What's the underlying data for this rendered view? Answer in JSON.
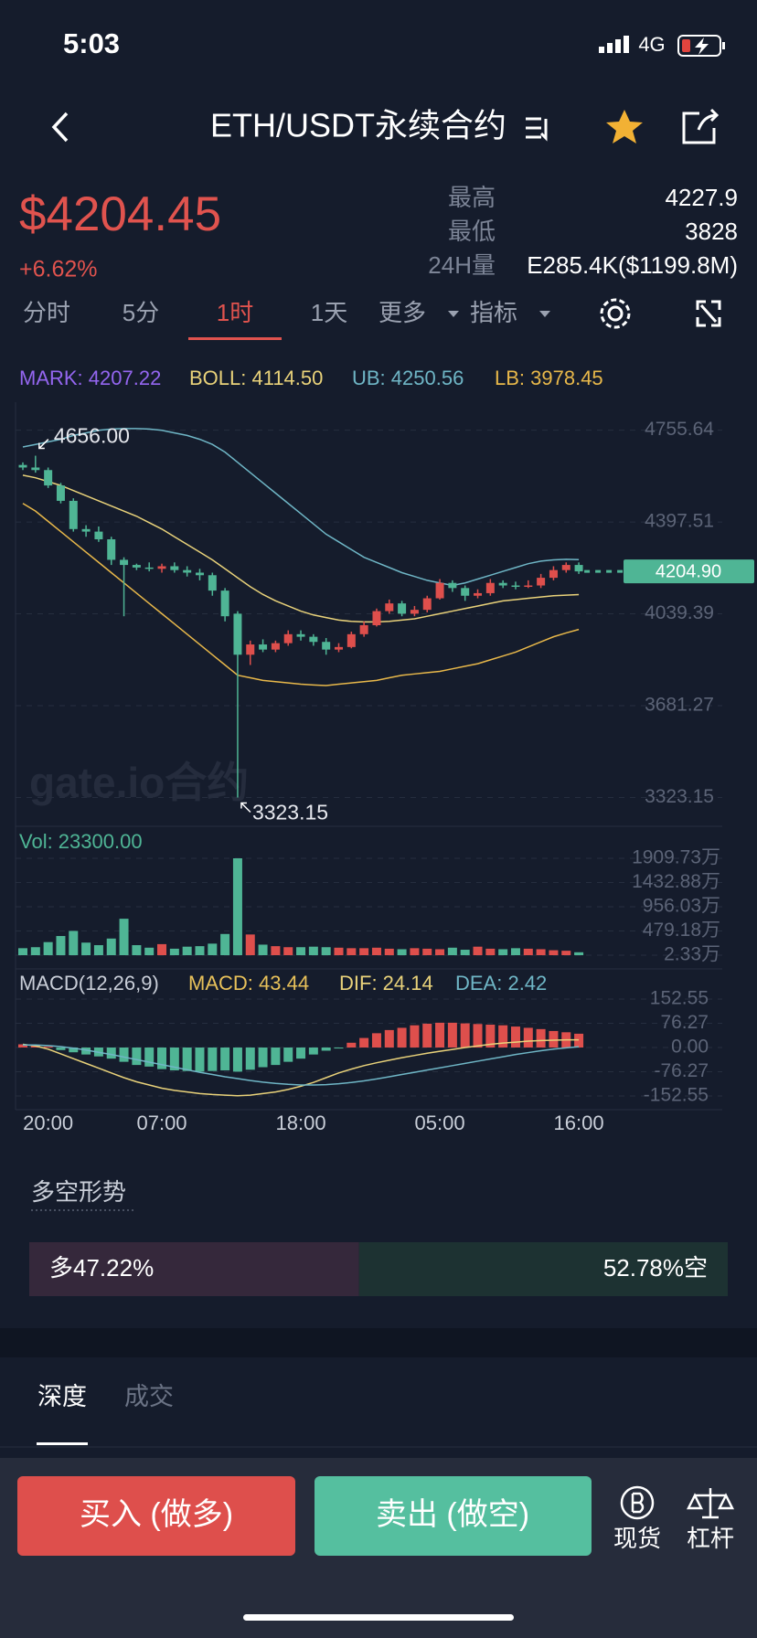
{
  "status_bar": {
    "time": "5:03",
    "network": "4G"
  },
  "header": {
    "title": "ETH/USDT永续合约"
  },
  "ticker": {
    "price": "$4204.45",
    "change": "+6.62%",
    "stats": [
      {
        "label": "最高",
        "value": "4227.9"
      },
      {
        "label": "最低",
        "value": "3828"
      },
      {
        "label": "24H量",
        "value": "E285.4K($1199.8M)"
      }
    ]
  },
  "timeframes": {
    "items": [
      "分时",
      "5分",
      "1时",
      "1天",
      "更多",
      "指标"
    ],
    "active": 2
  },
  "chart_data": [
    {
      "type": "candlestick",
      "legend": [
        {
          "text": "MARK: 4207.22",
          "color": "#9466f0"
        },
        {
          "text": "BOLL: 4114.50",
          "color": "#e9d27a"
        },
        {
          "text": "UB: 4250.56",
          "color": "#6fb6c6"
        },
        {
          "text": "LB: 3978.45",
          "color": "#e8b84a"
        }
      ],
      "open": [
        4620,
        4610,
        4600,
        4540,
        4480,
        4370,
        4360,
        4330,
        4250,
        4230,
        4220,
        4215,
        4225,
        4210,
        4200,
        4190,
        4130,
        4040,
        3880,
        3920,
        3900,
        3925,
        3960,
        3950,
        3930,
        3900,
        3910,
        3960,
        3995,
        4050,
        4080,
        4040,
        4055,
        4100,
        4160,
        4140,
        4110,
        4120,
        4160,
        4150,
        4145,
        4150,
        4180,
        4210,
        4230
      ],
      "high": [
        4630,
        4656,
        4610,
        4550,
        4490,
        4385,
        4380,
        4340,
        4260,
        4235,
        4240,
        4235,
        4240,
        4225,
        4215,
        4200,
        4140,
        4050,
        3935,
        3940,
        3935,
        3975,
        3975,
        3960,
        3945,
        3925,
        3970,
        4010,
        4060,
        4095,
        4090,
        4070,
        4110,
        4175,
        4170,
        4150,
        4135,
        4175,
        4170,
        4165,
        4170,
        4195,
        4225,
        4240,
        4240
      ],
      "low": [
        4600,
        4590,
        4530,
        4470,
        4360,
        4340,
        4320,
        4230,
        4030,
        4210,
        4205,
        4200,
        4200,
        4185,
        4170,
        4110,
        4010,
        3323.15,
        3840,
        3890,
        3890,
        3915,
        3935,
        3915,
        3880,
        3890,
        3905,
        3950,
        3990,
        4040,
        4030,
        4030,
        4045,
        4095,
        4125,
        4090,
        4100,
        4110,
        4140,
        4135,
        4140,
        4140,
        4170,
        4200,
        4195
      ],
      "close": [
        4610,
        4600,
        4540,
        4480,
        4370,
        4360,
        4330,
        4250,
        4230,
        4220,
        4215,
        4225,
        4210,
        4200,
        4190,
        4130,
        4030,
        3880,
        3920,
        3900,
        3925,
        3960,
        3950,
        3930,
        3900,
        3910,
        3960,
        3995,
        4050,
        4080,
        4040,
        4055,
        4100,
        4160,
        4140,
        4110,
        4120,
        4160,
        4150,
        4145,
        4150,
        4180,
        4210,
        4230,
        4204.9
      ],
      "up_color": "#de4f4c",
      "down_color": "#4fb595",
      "lines": [
        {
          "color": "#6fb6c6",
          "values": [
            4690,
            4700,
            4710,
            4720,
            4735,
            4745,
            4755,
            4760,
            4762,
            4762,
            4760,
            4755,
            4745,
            4735,
            4720,
            4700,
            4670,
            4630,
            4590,
            4550,
            4510,
            4470,
            4430,
            4390,
            4350,
            4320,
            4290,
            4260,
            4240,
            4220,
            4200,
            4185,
            4170,
            4160,
            4150,
            4160,
            4175,
            4190,
            4205,
            4220,
            4235,
            4245,
            4250,
            4252,
            4250.56
          ]
        },
        {
          "color": "#e9d27a",
          "values": [
            4580,
            4570,
            4555,
            4540,
            4520,
            4500,
            4480,
            4460,
            4440,
            4420,
            4395,
            4370,
            4340,
            4310,
            4280,
            4250,
            4215,
            4180,
            4145,
            4115,
            4090,
            4070,
            4050,
            4035,
            4025,
            4015,
            4010,
            4008,
            4008,
            4010,
            4015,
            4020,
            4030,
            4040,
            4050,
            4060,
            4070,
            4080,
            4090,
            4095,
            4100,
            4105,
            4110,
            4112,
            4114.5
          ]
        },
        {
          "color": "#e8b84a",
          "values": [
            4470,
            4440,
            4400,
            4360,
            4320,
            4280,
            4240,
            4200,
            4160,
            4120,
            4080,
            4040,
            4000,
            3960,
            3920,
            3880,
            3840,
            3800,
            3790,
            3780,
            3775,
            3770,
            3765,
            3762,
            3760,
            3765,
            3770,
            3775,
            3780,
            3790,
            3800,
            3805,
            3810,
            3815,
            3825,
            3835,
            3845,
            3860,
            3875,
            3890,
            3910,
            3930,
            3950,
            3965,
            3978.45
          ]
        }
      ],
      "ylim": [
        3323.15,
        4755.64
      ],
      "yticks": [
        4755.64,
        4397.51,
        4039.39,
        3681.27,
        3323.15
      ],
      "grid": true,
      "max_label": {
        "value": 4656,
        "label": "4656.00"
      },
      "min_label": {
        "value": 3323.15,
        "label": "3323.15"
      },
      "last_price": {
        "value": 4204.9,
        "label": "4204.90",
        "color": "#4fb595"
      },
      "watermark": "gate.io合约"
    },
    {
      "type": "bar",
      "title": "Vol: 23300.00",
      "title_color": "#4fb595",
      "values": [
        140,
        160,
        260,
        380,
        480,
        250,
        200,
        330,
        720,
        200,
        150,
        220,
        130,
        170,
        180,
        230,
        420,
        1909.73,
        410,
        210,
        180,
        160,
        160,
        170,
        160,
        150,
        140,
        140,
        150,
        130,
        120,
        140,
        130,
        120,
        150,
        110,
        170,
        130,
        120,
        140,
        130,
        120,
        100,
        90,
        60
      ],
      "ylim": [
        2.33,
        1909.73
      ],
      "yticks": [
        {
          "value": 1909.73,
          "label": "1909.73万"
        },
        {
          "value": 1432.88,
          "label": "1432.88万"
        },
        {
          "value": 956.03,
          "label": "956.03万"
        },
        {
          "value": 479.18,
          "label": "479.18万"
        },
        {
          "value": 2.33,
          "label": "2.33万"
        }
      ],
      "grid": true
    },
    {
      "type": "bar",
      "title": "MACD(12,26,9)",
      "legend": [
        {
          "text": "MACD: 43.44",
          "color": "#e8c15a"
        },
        {
          "text": "DIF: 24.14",
          "color": "#e9d27a"
        },
        {
          "text": "DEA: 2.42",
          "color": "#6fb6c6"
        }
      ],
      "categories": [
        null,
        null,
        "20:00",
        null,
        null,
        null,
        null,
        null,
        null,
        null,
        null,
        "07:00",
        null,
        null,
        null,
        null,
        null,
        null,
        null,
        null,
        null,
        null,
        "18:00",
        null,
        null,
        null,
        null,
        null,
        null,
        null,
        null,
        null,
        null,
        "05:00",
        null,
        null,
        null,
        null,
        null,
        null,
        null,
        null,
        null,
        null,
        "16:00"
      ],
      "values": [
        10,
        8,
        3,
        -8,
        -15,
        -22,
        -28,
        -35,
        -45,
        -55,
        -60,
        -68,
        -72,
        -74,
        -76,
        -74,
        -72,
        -76,
        -70,
        -62,
        -55,
        -45,
        -35,
        -22,
        -10,
        -3,
        15,
        30,
        45,
        55,
        62,
        70,
        75,
        78,
        78,
        76,
        74,
        72,
        70,
        66,
        62,
        58,
        52,
        48,
        43.44
      ],
      "up_color": "#de4f4c",
      "down_color": "#4fb595",
      "lines": [
        {
          "color": "#e9d27a",
          "values": [
            10,
            5,
            -5,
            -20,
            -35,
            -50,
            -65,
            -80,
            -95,
            -108,
            -118,
            -128,
            -135,
            -140,
            -145,
            -148,
            -150,
            -152,
            -150,
            -145,
            -140,
            -132,
            -122,
            -110,
            -95,
            -80,
            -68,
            -57,
            -48,
            -40,
            -32,
            -25,
            -18,
            -12,
            -6,
            0,
            5,
            10,
            14,
            17,
            20,
            22,
            23,
            24,
            24.14
          ]
        },
        {
          "color": "#6fb6c6",
          "values": [
            8,
            8,
            6,
            3,
            -2,
            -8,
            -15,
            -22,
            -30,
            -38,
            -46,
            -54,
            -62,
            -70,
            -78,
            -85,
            -92,
            -98,
            -104,
            -109,
            -113,
            -116,
            -118,
            -118,
            -117,
            -114,
            -110,
            -105,
            -99,
            -92,
            -85,
            -78,
            -71,
            -64,
            -57,
            -50,
            -43,
            -36,
            -29,
            -22,
            -16,
            -10,
            -5,
            -1,
            2.42
          ]
        }
      ],
      "ylim": [
        -152.55,
        152.55
      ],
      "yticks": [
        152.55,
        76.27,
        {
          "value": 0,
          "label": "0.00"
        },
        -76.27,
        -152.55
      ],
      "grid": true
    }
  ],
  "sentiment": {
    "title": "多空形势",
    "long": {
      "value": 47.22,
      "label": "多47.22%",
      "color": "#35283b"
    },
    "short": {
      "value": 52.78,
      "label": "52.78%空",
      "color": "#1d3232"
    }
  },
  "tabs": {
    "items": [
      "深度",
      "成交"
    ],
    "active": 0
  },
  "actions": {
    "buy": "买入 (做多)",
    "sell": "卖出 (做空)",
    "spot": "现货",
    "leverage": "杠杆"
  }
}
